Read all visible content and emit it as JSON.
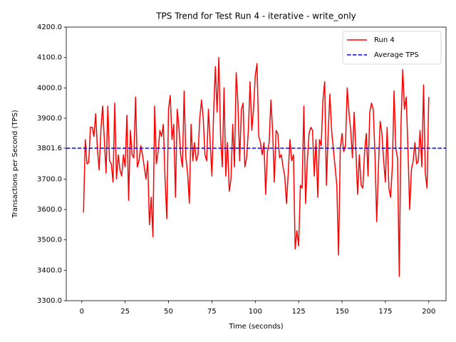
{
  "chart_data": {
    "type": "line",
    "title": "TPS Trend for Test Run 4 - iterative - write_only",
    "xlabel": "Time (seconds)",
    "ylabel": "Transactions per Second (TPS)",
    "x": [
      1,
      2,
      3,
      4,
      5,
      6,
      7,
      8,
      9,
      10,
      11,
      12,
      13,
      14,
      15,
      16,
      17,
      18,
      19,
      20,
      21,
      22,
      23,
      24,
      25,
      26,
      27,
      28,
      29,
      30,
      31,
      32,
      33,
      34,
      35,
      36,
      37,
      38,
      39,
      40,
      41,
      42,
      43,
      44,
      45,
      46,
      47,
      48,
      49,
      50,
      51,
      52,
      53,
      54,
      55,
      56,
      57,
      58,
      59,
      60,
      61,
      62,
      63,
      64,
      65,
      66,
      67,
      68,
      69,
      70,
      71,
      72,
      73,
      74,
      75,
      76,
      77,
      78,
      79,
      80,
      81,
      82,
      83,
      84,
      85,
      86,
      87,
      88,
      89,
      90,
      91,
      92,
      93,
      94,
      95,
      96,
      97,
      98,
      99,
      100,
      101,
      102,
      103,
      104,
      105,
      106,
      107,
      108,
      109,
      110,
      111,
      112,
      113,
      114,
      115,
      116,
      117,
      118,
      119,
      120,
      121,
      122,
      123,
      124,
      125,
      126,
      127,
      128,
      129,
      130,
      131,
      132,
      133,
      134,
      135,
      136,
      137,
      138,
      139,
      140,
      141,
      142,
      143,
      144,
      145,
      146,
      147,
      148,
      149,
      150,
      151,
      152,
      153,
      154,
      155,
      156,
      157,
      158,
      159,
      160,
      161,
      162,
      163,
      164,
      165,
      166,
      167,
      168,
      169,
      170,
      171,
      172,
      173,
      174,
      175,
      176,
      177,
      178,
      179,
      180,
      181,
      182,
      183,
      184,
      185,
      186,
      187,
      188,
      189,
      190,
      191,
      192,
      193,
      194,
      195,
      196,
      197,
      198,
      199,
      200
    ],
    "series": [
      {
        "name": "Run 4",
        "color": "#ff0000",
        "values": [
          3590,
          3830,
          3750,
          3755,
          3870,
          3870,
          3840,
          3915,
          3800,
          3730,
          3860,
          3940,
          3830,
          3720,
          3940,
          3760,
          3750,
          3690,
          3950,
          3700,
          3780,
          3730,
          3710,
          3780,
          3740,
          3910,
          3630,
          3860,
          3780,
          3770,
          3970,
          3740,
          3760,
          3810,
          3780,
          3740,
          3700,
          3760,
          3550,
          3640,
          3510,
          3940,
          3750,
          3790,
          3860,
          3840,
          3880,
          3700,
          3570,
          3930,
          3975,
          3830,
          3880,
          3640,
          3930,
          3870,
          3780,
          3740,
          3990,
          3770,
          3720,
          3620,
          3880,
          3760,
          3820,
          3760,
          3780,
          3900,
          3960,
          3900,
          3780,
          3760,
          3930,
          3820,
          3710,
          3920,
          4070,
          3920,
          4100,
          3840,
          3740,
          4000,
          3710,
          3820,
          3660,
          3700,
          3880,
          3740,
          4050,
          3950,
          3760,
          3930,
          3950,
          3740,
          3770,
          3860,
          4020,
          3860,
          3930,
          4040,
          4080,
          3840,
          3820,
          3780,
          3820,
          3650,
          3790,
          3820,
          3960,
          3860,
          3690,
          3860,
          3850,
          3770,
          3780,
          3740,
          3710,
          3620,
          3720,
          3830,
          3760,
          3780,
          3470,
          3530,
          3480,
          3680,
          3670,
          3940,
          3620,
          3760,
          3850,
          3870,
          3860,
          3710,
          3830,
          3640,
          3830,
          3810,
          3960,
          4020,
          3680,
          3850,
          3980,
          3860,
          3800,
          3740,
          3680,
          3450,
          3800,
          3850,
          3790,
          3810,
          4000,
          3920,
          3860,
          3770,
          3920,
          3790,
          3650,
          3780,
          3680,
          3670,
          3790,
          3850,
          3710,
          3920,
          3950,
          3930,
          3780,
          3560,
          3740,
          3890,
          3850,
          3760,
          3690,
          3870,
          3670,
          3640,
          3740,
          3990,
          3800,
          3770,
          3380,
          3880,
          4060,
          3930,
          3970,
          3800,
          3600,
          3730,
          3760,
          3820,
          3750,
          3760,
          3860,
          3740,
          4010,
          3720,
          3670,
          3970
        ]
      }
    ],
    "average": {
      "name": "Average TPS",
      "value": 3801.6,
      "color": "#0000ff"
    },
    "xlim": [
      -8.95,
      209.95
    ],
    "ylim": [
      3300,
      4200
    ],
    "xticks": [
      0,
      25,
      50,
      75,
      100,
      125,
      150,
      175,
      200
    ],
    "yticks": [
      {
        "value": 3300,
        "label": "3300.0"
      },
      {
        "value": 3400,
        "label": "3400.0"
      },
      {
        "value": 3500,
        "label": "3500.0"
      },
      {
        "value": 3600,
        "label": "3600.0"
      },
      {
        "value": 3700,
        "label": "3700.0"
      },
      3801.6,
      {
        "value": 3900,
        "label": "3900.0"
      },
      {
        "value": 4000,
        "label": "4000.0"
      },
      {
        "value": 4100,
        "label": "4100.0"
      },
      {
        "value": 4200,
        "label": "4200.0"
      }
    ],
    "legend": "upper right"
  }
}
